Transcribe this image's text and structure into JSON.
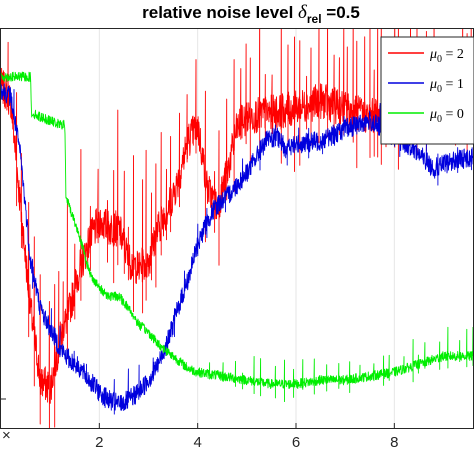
{
  "chart_data": {
    "type": "line",
    "title": {
      "prefix": "relative noise level ",
      "symbol": "δ",
      "subscript": "rel",
      "suffix": " =0.5"
    },
    "xlabel": "",
    "ylabel": "",
    "x_ticks": [
      2,
      4,
      6,
      8
    ],
    "x_corner_glyph": "×",
    "xlim": [
      0,
      9.6
    ],
    "ylim": [
      0,
      1
    ],
    "grid": true,
    "legend_position": "top-right",
    "series": [
      {
        "name": "μ0 = 2",
        "legend": {
          "symbol": "μ",
          "subscript": "0",
          "rest": " = 2"
        },
        "color": "#ff0000",
        "noise": 0.045,
        "spike_every": 0.13,
        "spike_height": 0.22,
        "x": [
          0,
          0.2,
          0.4,
          0.6,
          0.8,
          1.0,
          1.2,
          1.4,
          1.6,
          1.8,
          2.0,
          2.2,
          2.4,
          2.6,
          2.8,
          3.0,
          3.2,
          3.4,
          3.6,
          3.8,
          4.0,
          4.2,
          4.4,
          4.6,
          4.8,
          5.0,
          5.5,
          6.0,
          6.5,
          7.0,
          7.5,
          8.0,
          8.5,
          9.0,
          9.6
        ],
        "y": [
          0.86,
          0.82,
          0.55,
          0.3,
          0.12,
          0.1,
          0.22,
          0.3,
          0.4,
          0.47,
          0.52,
          0.5,
          0.5,
          0.42,
          0.4,
          0.42,
          0.5,
          0.55,
          0.62,
          0.72,
          0.76,
          0.6,
          0.55,
          0.64,
          0.75,
          0.78,
          0.79,
          0.8,
          0.82,
          0.8,
          0.78,
          0.8,
          0.79,
          0.81,
          0.8
        ]
      },
      {
        "name": "μ0 = 1",
        "legend": {
          "symbol": "μ",
          "subscript": "0",
          "rest": " = 1"
        },
        "color": "#0000dd",
        "noise": 0.025,
        "spike_every": 0.3,
        "spike_height": 0.05,
        "x": [
          0,
          0.2,
          0.4,
          0.6,
          0.8,
          1.0,
          1.2,
          1.4,
          1.6,
          1.8,
          2.0,
          2.2,
          2.4,
          2.6,
          2.8,
          3.0,
          3.2,
          3.4,
          3.6,
          3.8,
          4.0,
          4.2,
          4.4,
          4.6,
          4.8,
          5.0,
          5.2,
          5.4,
          5.6,
          5.8,
          6.0,
          6.5,
          7.0,
          7.5,
          8.0,
          8.4,
          8.8,
          9.2,
          9.6
        ],
        "y": [
          0.85,
          0.83,
          0.68,
          0.42,
          0.3,
          0.25,
          0.2,
          0.17,
          0.15,
          0.12,
          0.09,
          0.07,
          0.06,
          0.07,
          0.09,
          0.12,
          0.16,
          0.22,
          0.3,
          0.37,
          0.46,
          0.52,
          0.56,
          0.58,
          0.61,
          0.64,
          0.68,
          0.72,
          0.73,
          0.7,
          0.71,
          0.72,
          0.75,
          0.77,
          0.73,
          0.7,
          0.65,
          0.67,
          0.68
        ]
      },
      {
        "name": "μ0 = 0",
        "legend": {
          "symbol": "μ",
          "subscript": "0",
          "rest": " = 0"
        },
        "color": "#00ee00",
        "noise": 0.012,
        "spike_every": 0.2,
        "spike_height": 0.06,
        "spike_from": 4.0,
        "x": [
          0,
          0.6,
          0.62,
          0.8,
          1.0,
          1.2,
          1.3,
          1.32,
          1.6,
          1.8,
          2.0,
          2.2,
          2.4,
          2.6,
          2.8,
          3.0,
          3.2,
          3.4,
          3.6,
          3.8,
          4.0,
          4.5,
          5.0,
          5.5,
          6.0,
          6.5,
          7.0,
          7.5,
          8.0,
          8.5,
          9.0,
          9.6
        ],
        "y": [
          0.88,
          0.88,
          0.79,
          0.78,
          0.77,
          0.76,
          0.76,
          0.58,
          0.48,
          0.39,
          0.35,
          0.33,
          0.33,
          0.3,
          0.26,
          0.24,
          0.21,
          0.19,
          0.17,
          0.15,
          0.14,
          0.13,
          0.12,
          0.11,
          0.11,
          0.12,
          0.12,
          0.13,
          0.14,
          0.16,
          0.18,
          0.18
        ]
      }
    ]
  }
}
